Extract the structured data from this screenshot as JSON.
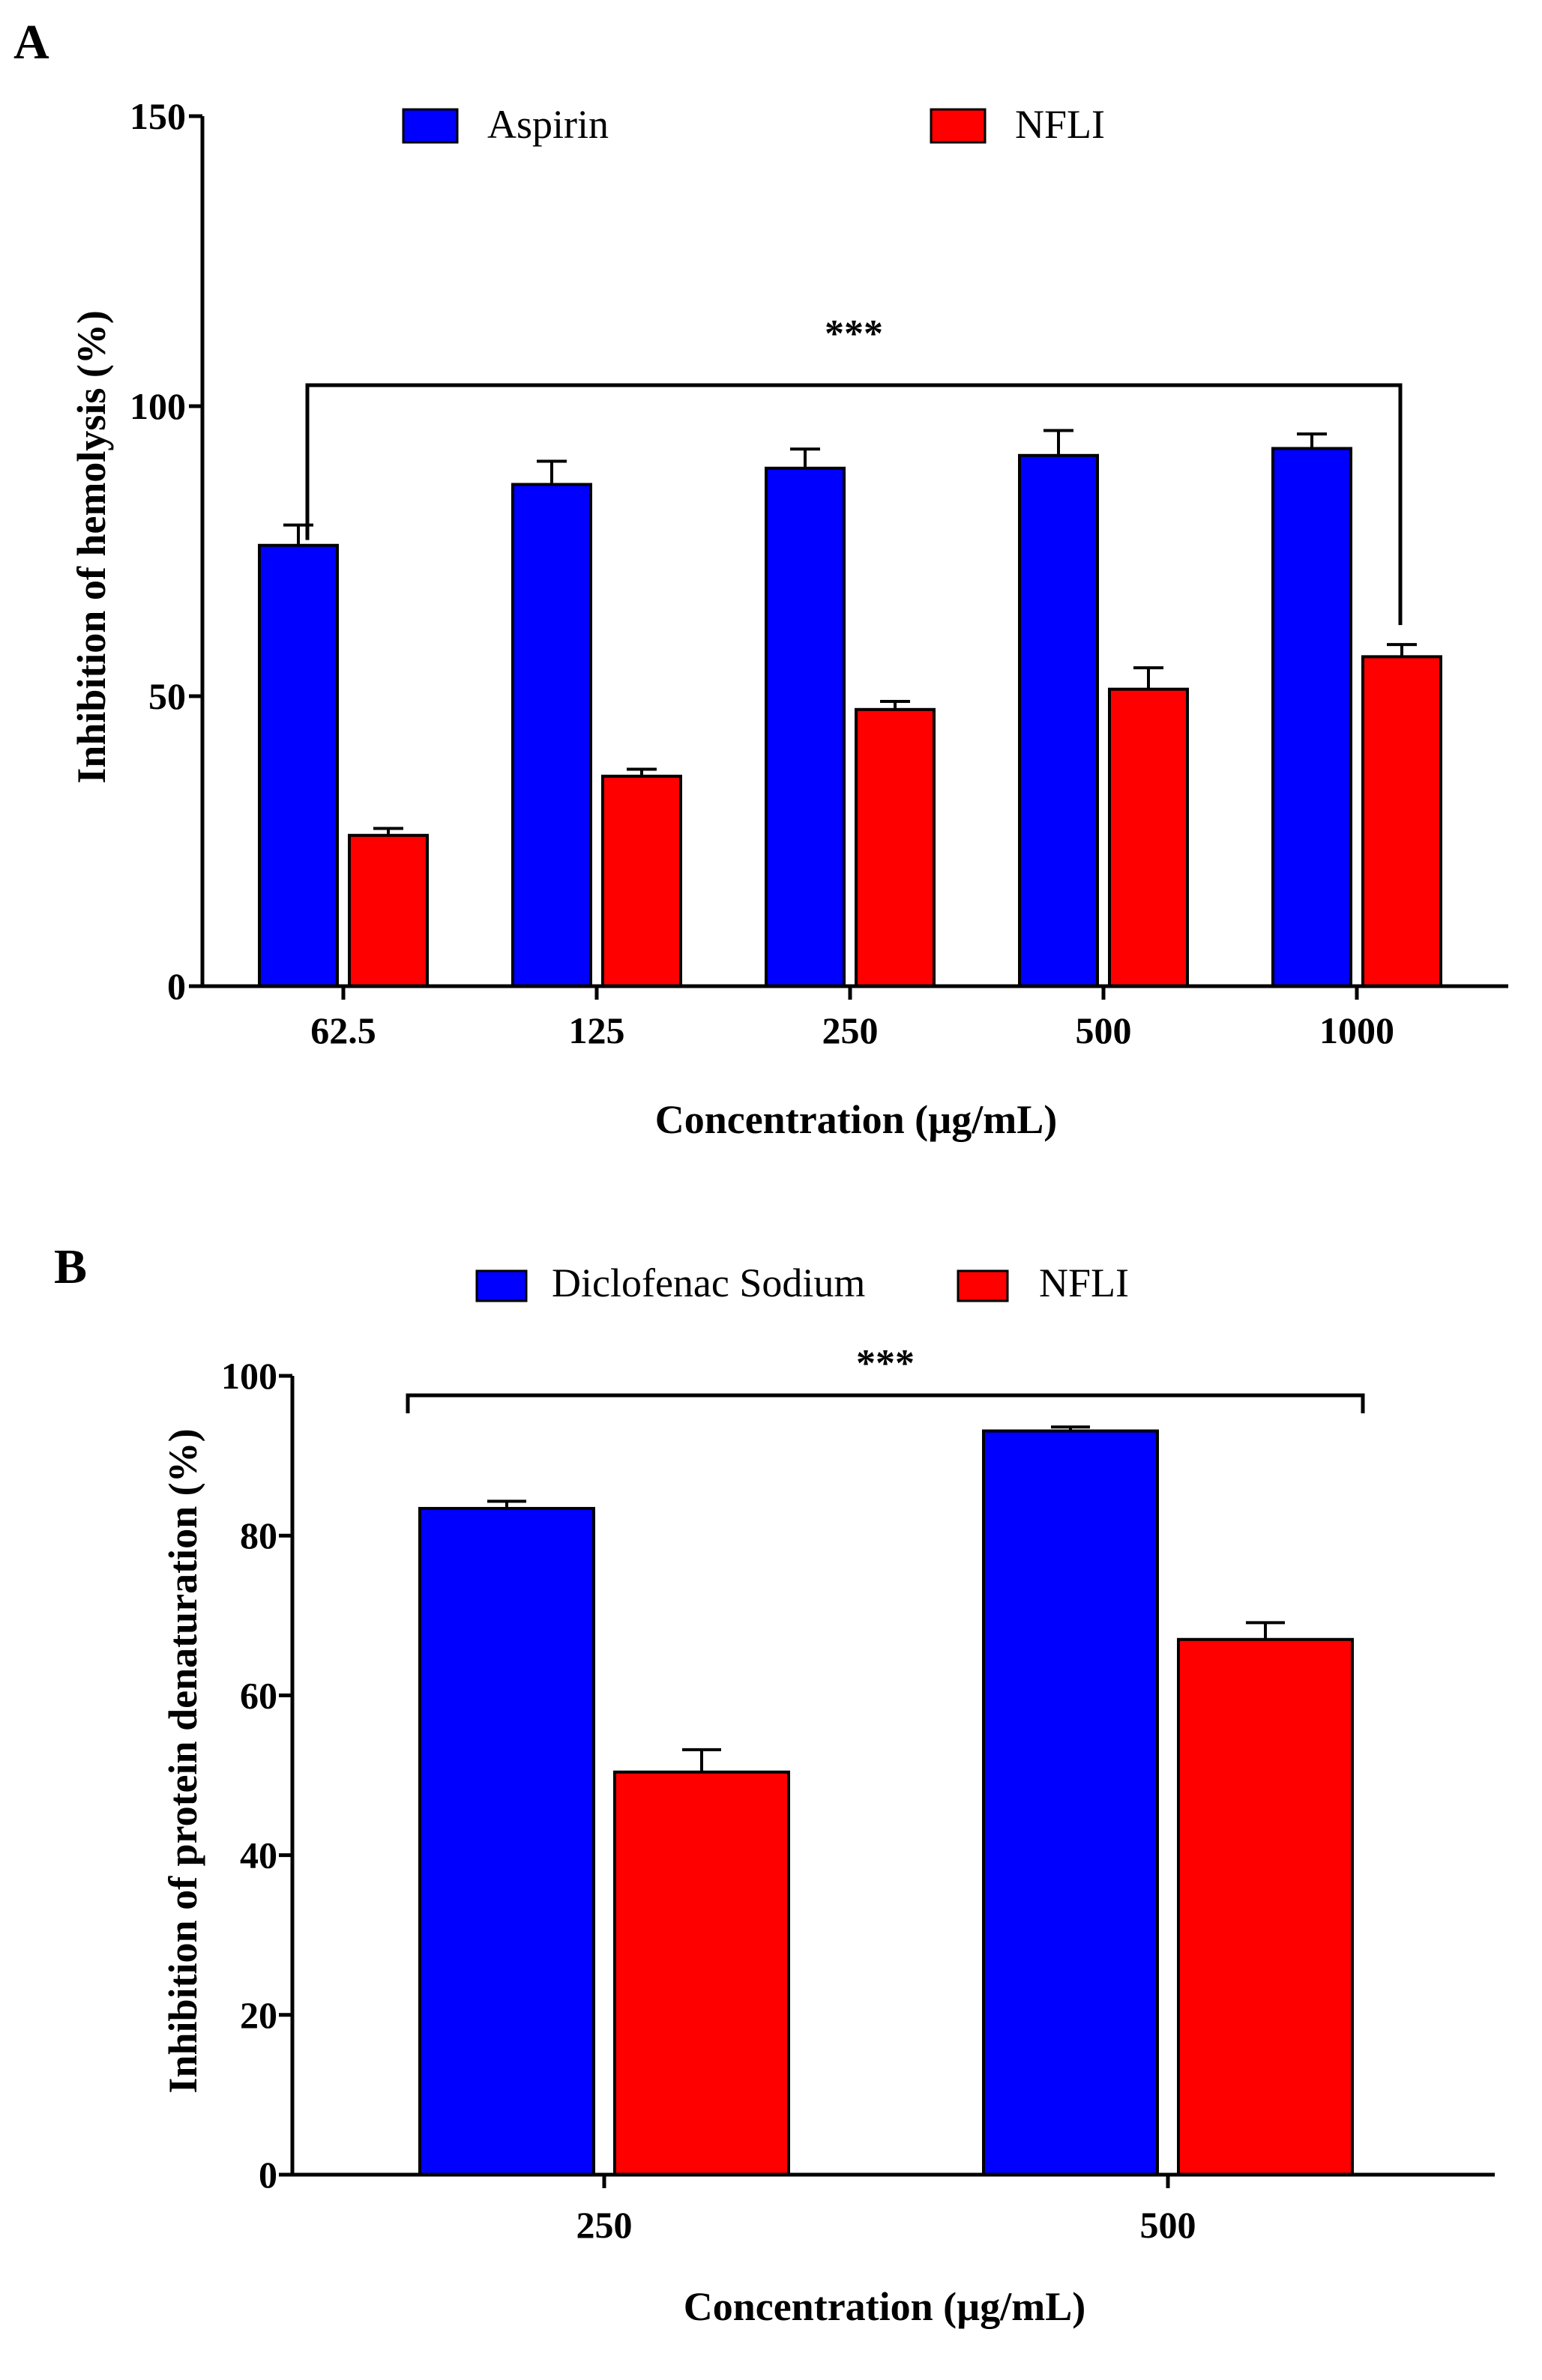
{
  "chart_data": [
    {
      "panel": "A",
      "type": "bar",
      "title": "",
      "xlabel": "Concentration (µg/mL)",
      "ylabel": "Inhibition of hemolysis (%)",
      "ylim": [
        0,
        150
      ],
      "yticks": [
        0,
        50,
        100,
        150
      ],
      "categories": [
        "62.5",
        "125",
        "250",
        "500",
        "1000"
      ],
      "series": [
        {
          "name": "Aspirin",
          "color": "#0000ff",
          "values": [
            76,
            86.5,
            89.3,
            91.5,
            92.7
          ],
          "errors": [
            3.5,
            4,
            3.3,
            4.3,
            2.5
          ]
        },
        {
          "name": "NFLI",
          "color": "#ff0000",
          "values": [
            26,
            36.2,
            47.7,
            51.2,
            56.8
          ],
          "errors": [
            1.2,
            1.2,
            1.4,
            3.7,
            2.1
          ]
        }
      ],
      "significance": {
        "label": "***",
        "from": "62.5",
        "to": "1000"
      },
      "legend_position": "top"
    },
    {
      "panel": "B",
      "type": "bar",
      "title": "",
      "xlabel": "Concentration (µg/mL)",
      "ylabel": "Inhibition of protein denaturation (%)",
      "ylim": [
        0,
        100
      ],
      "yticks": [
        0,
        20,
        40,
        60,
        80,
        100
      ],
      "categories": [
        "250",
        "500"
      ],
      "series": [
        {
          "name": "Diclofenac Sodium",
          "color": "#0000ff",
          "values": [
            83.4,
            93.1
          ],
          "errors": [
            0.9,
            0.5
          ]
        },
        {
          "name": "NFLI",
          "color": "#ff0000",
          "values": [
            50.4,
            67
          ],
          "errors": [
            2.8,
            2.1
          ]
        }
      ],
      "significance": {
        "label": "***",
        "from": "250",
        "to": "500"
      },
      "legend_position": "top"
    }
  ]
}
